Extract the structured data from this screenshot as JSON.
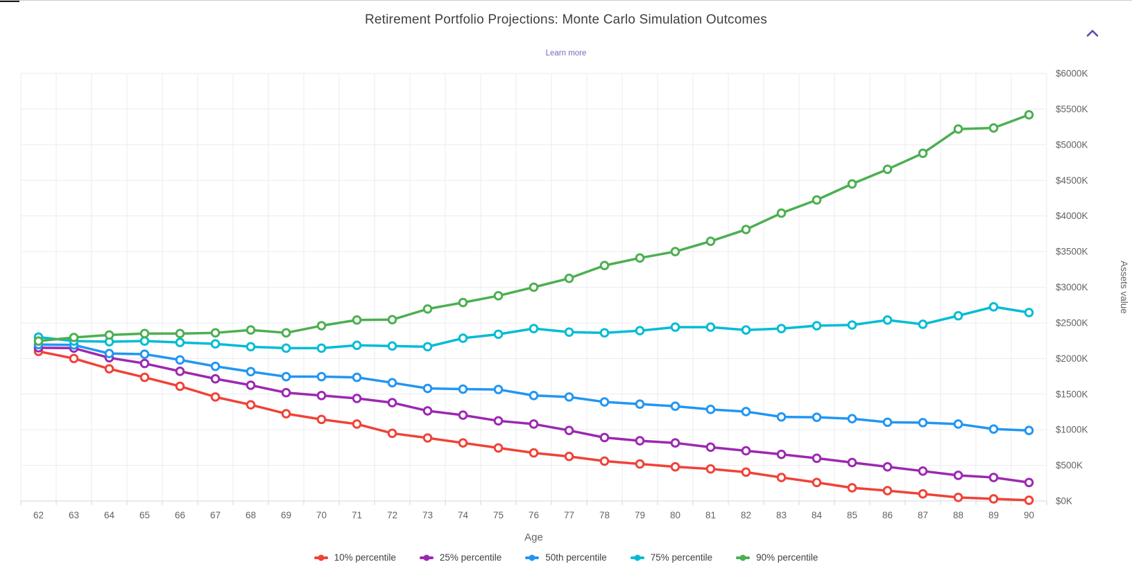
{
  "header": {
    "title": "Retirement Portfolio Projections: Monte Carlo Simulation Outcomes",
    "learn_more_label": "Learn more",
    "collapse_icon": "chevron-up"
  },
  "colors": {
    "p10": "#F04237",
    "p25": "#9C28B1",
    "p50": "#2196F3",
    "p75": "#00BCD4",
    "p90": "#4CAF50",
    "grid": "#ECEAF2",
    "axis_line": "#D7D3E0",
    "tick_text": "#5F6368",
    "title_text": "#3C4043",
    "link": "#7668BD",
    "chevron": "#5A49B3"
  },
  "chart_data": {
    "type": "line",
    "title": "Retirement Portfolio Projections: Monte Carlo Simulation Outcomes",
    "xlabel": "Age",
    "ylabel": "Assets value",
    "grid": true,
    "legend_position": "bottom",
    "marker": "open-circle",
    "units": "USD thousands",
    "x": [
      62,
      63,
      64,
      65,
      66,
      67,
      68,
      69,
      70,
      71,
      72,
      73,
      74,
      75,
      76,
      77,
      78,
      79,
      80,
      81,
      82,
      83,
      84,
      85,
      86,
      87,
      88,
      89,
      90
    ],
    "ylim": [
      0,
      6000
    ],
    "y_ticks": [
      {
        "label": "$0K",
        "value": 0
      },
      {
        "label": "$500K",
        "value": 500
      },
      {
        "label": "$1000K",
        "value": 1000
      },
      {
        "label": "$1500K",
        "value": 1500
      },
      {
        "label": "$2000K",
        "value": 2000
      },
      {
        "label": "$2500K",
        "value": 2500
      },
      {
        "label": "$3000K",
        "value": 3000
      },
      {
        "label": "$3500K",
        "value": 3500
      },
      {
        "label": "$4000K",
        "value": 4000
      },
      {
        "label": "$4500K",
        "value": 4500
      },
      {
        "label": "$5000K",
        "value": 5000
      },
      {
        "label": "$5500K",
        "value": 5500
      },
      {
        "label": "$6000K",
        "value": 6000
      }
    ],
    "series": [
      {
        "name": "10% percentile",
        "color_key": "p10",
        "values": [
          2100,
          2000,
          1855,
          1735,
          1610,
          1460,
          1350,
          1225,
          1145,
          1080,
          950,
          885,
          815,
          745,
          675,
          625,
          560,
          520,
          480,
          450,
          405,
          330,
          260,
          185,
          145,
          100,
          50,
          30,
          10
        ]
      },
      {
        "name": "25% percentile",
        "color_key": "p25",
        "values": [
          2150,
          2145,
          2010,
          1930,
          1820,
          1715,
          1625,
          1520,
          1480,
          1440,
          1380,
          1265,
          1205,
          1125,
          1080,
          990,
          890,
          845,
          815,
          755,
          705,
          655,
          600,
          540,
          480,
          420,
          360,
          330,
          260
        ]
      },
      {
        "name": "50th percentile",
        "color_key": "p50",
        "values": [
          2195,
          2190,
          2070,
          2060,
          1980,
          1890,
          1815,
          1745,
          1745,
          1735,
          1660,
          1580,
          1570,
          1565,
          1480,
          1460,
          1390,
          1360,
          1330,
          1285,
          1255,
          1180,
          1175,
          1155,
          1105,
          1100,
          1080,
          1010,
          990
        ]
      },
      {
        "name": "75% percentile",
        "color_key": "p75",
        "values": [
          2300,
          2245,
          2235,
          2245,
          2225,
          2205,
          2165,
          2145,
          2145,
          2185,
          2175,
          2165,
          2285,
          2340,
          2420,
          2370,
          2360,
          2390,
          2440,
          2440,
          2400,
          2420,
          2460,
          2470,
          2540,
          2480,
          2600,
          2725,
          2645
        ]
      },
      {
        "name": "90% percentile",
        "color_key": "p90",
        "values": [
          2245,
          2295,
          2330,
          2350,
          2350,
          2360,
          2400,
          2360,
          2460,
          2540,
          2545,
          2695,
          2785,
          2880,
          3000,
          3125,
          3305,
          3410,
          3500,
          3645,
          3810,
          4040,
          4225,
          4450,
          4655,
          4880,
          5220,
          5235,
          5420
        ]
      }
    ]
  }
}
